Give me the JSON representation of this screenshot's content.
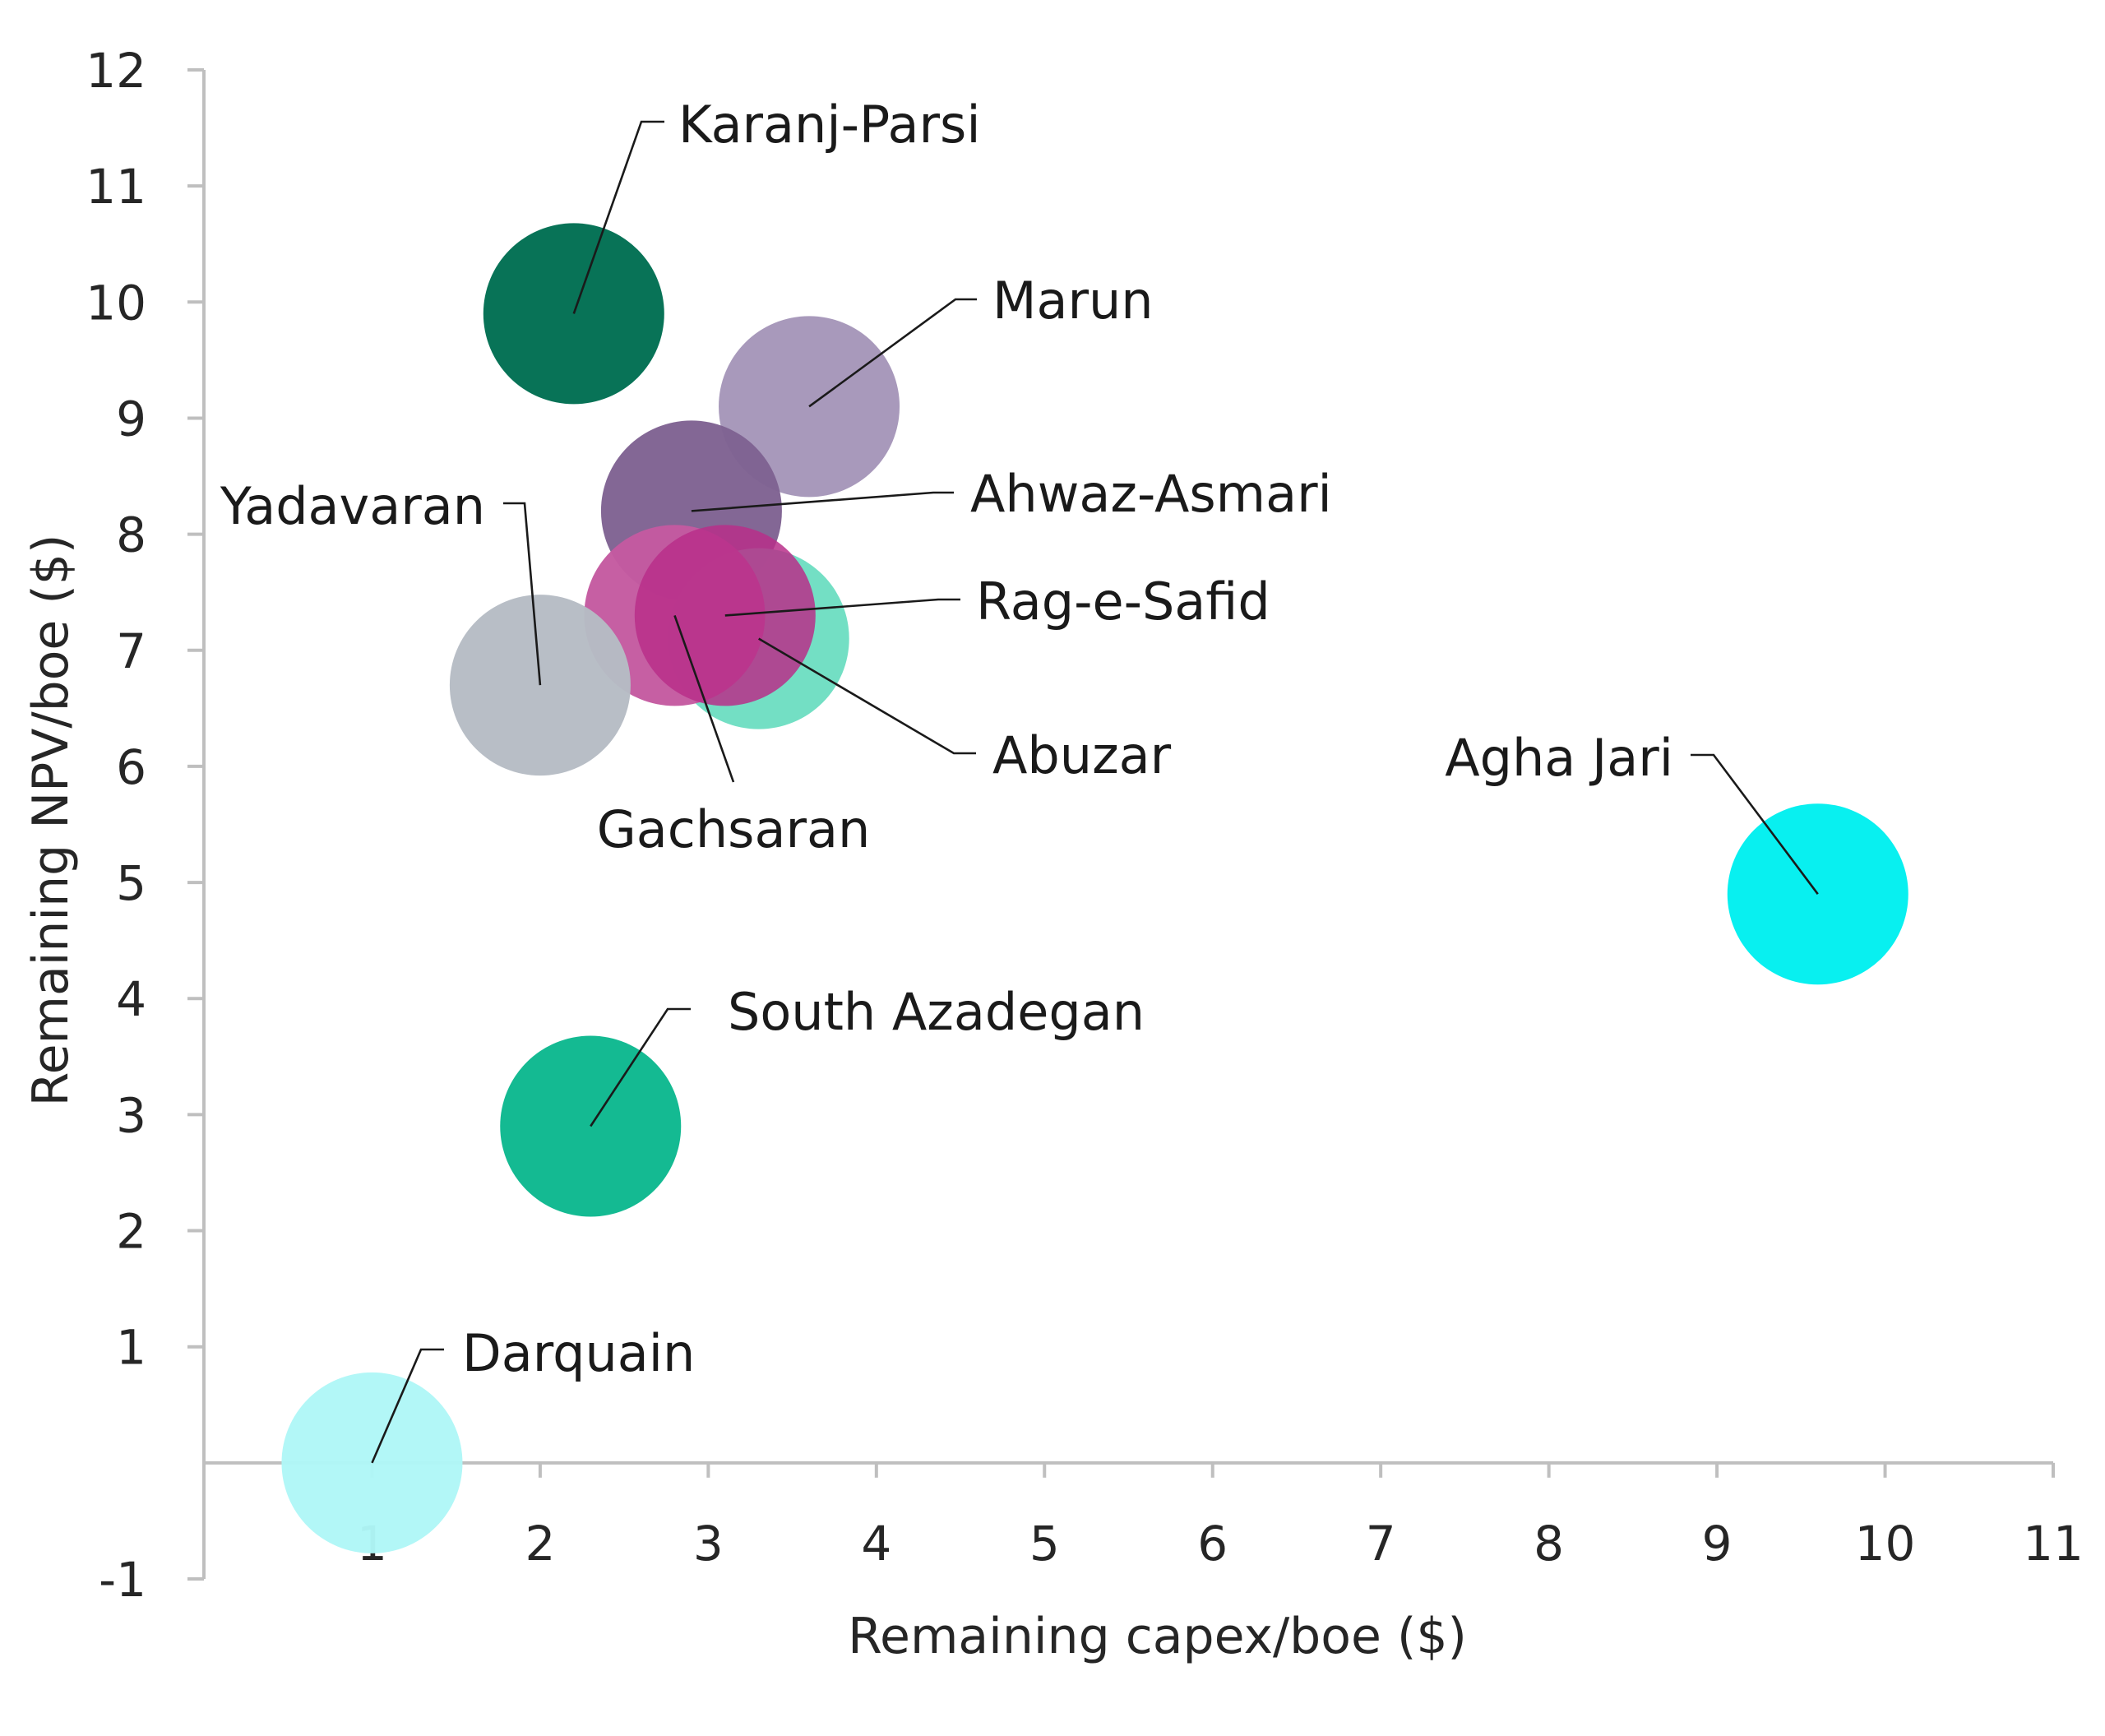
{
  "chart_data": {
    "type": "scatter",
    "title": "",
    "xlabel": "Remaining capex/boe ($)",
    "ylabel": "Remaining NPV/boe ($)",
    "xlim": [
      0,
      11
    ],
    "ylim": [
      -1,
      12
    ],
    "x_ticks": [
      1,
      2,
      3,
      4,
      5,
      6,
      7,
      8,
      9,
      10,
      11
    ],
    "y_ticks": [
      -1,
      1,
      2,
      3,
      4,
      5,
      6,
      7,
      8,
      9,
      10,
      11,
      12
    ],
    "grid": false,
    "legend": "none",
    "points": [
      {
        "label": "Karanj-Parsi",
        "x": 2.2,
        "y": 9.9,
        "color": "#006e52"
      },
      {
        "label": "Marun",
        "x": 3.6,
        "y": 9.1,
        "color": "#a596b9"
      },
      {
        "label": "Ahwaz-Asmari",
        "x": 2.9,
        "y": 8.2,
        "color": "#7f6292"
      },
      {
        "label": "Abuzar",
        "x": 3.3,
        "y": 7.1,
        "color": "#6edec2"
      },
      {
        "label": "Gachsaran",
        "x": 2.8,
        "y": 7.3,
        "color": "#c45aa0"
      },
      {
        "label": "Rag-e-Safid",
        "x": 3.1,
        "y": 7.3,
        "color": "#b92f8a"
      },
      {
        "label": "Yadavaran",
        "x": 2.0,
        "y": 6.7,
        "color": "#b6bcc4"
      },
      {
        "label": "Agha Jari",
        "x": 9.6,
        "y": 4.9,
        "color": "#00f0f0"
      },
      {
        "label": "South Azadegan",
        "x": 2.3,
        "y": 2.9,
        "color": "#0cb88e"
      },
      {
        "label": "Darquain",
        "x": 1.0,
        "y": 0.0,
        "color": "#b0f7f7"
      }
    ]
  }
}
